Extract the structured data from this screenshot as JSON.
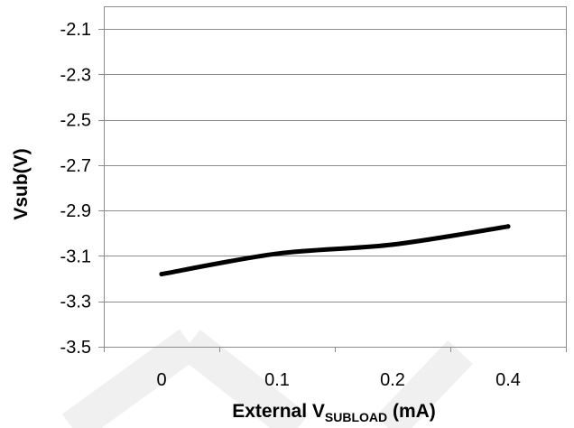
{
  "chart_data": {
    "type": "line",
    "title": "",
    "xlabel": {
      "prefix": "External V",
      "subscript": "SUBLOAD",
      "suffix": " (mA)"
    },
    "ylabel": "Vsub(V)",
    "categories": [
      "0",
      "0.1",
      "0.2",
      "0.4"
    ],
    "series": [
      {
        "name": "",
        "values": [
          -3.18,
          -3.09,
          -3.05,
          -2.97
        ],
        "color": "#000000"
      }
    ],
    "ylim": [
      -3.5,
      -2.0
    ],
    "yticks": [
      -3.5,
      -3.3,
      -3.1,
      -2.9,
      -2.7,
      -2.5,
      -2.3,
      -2.1
    ],
    "ytick_labels": [
      "-3.5",
      "-3.3",
      "-3.1",
      "-2.9",
      "-2.7",
      "-2.5",
      "-2.3",
      "-2.1"
    ],
    "grid": true,
    "legend": "none"
  },
  "style": {
    "grid_color": "#8c8c8c",
    "axis_color": "#8c8c8c",
    "line_color": "#000000",
    "watermark_color": "#f0f0f0"
  }
}
